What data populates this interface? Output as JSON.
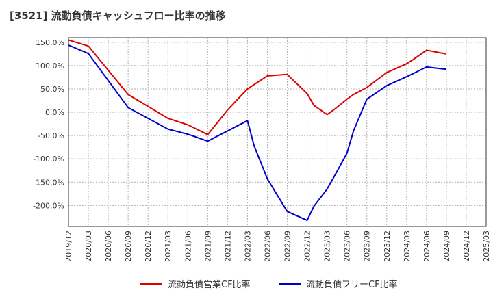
{
  "chart_data": {
    "type": "line",
    "title": "[3521]  流動負債キャッシュフロー比率の推移",
    "x_labels": [
      "2019/12",
      "2020/03",
      "2020/06",
      "2020/09",
      "2020/12",
      "2021/03",
      "2021/06",
      "2021/09",
      "2021/12",
      "2022/03",
      "2022/06",
      "2022/09",
      "2022/12",
      "2023/03",
      "2023/06",
      "2023/09",
      "2023/12",
      "2024/03",
      "2024/06",
      "2024/09",
      "2024/12",
      "2025/03"
    ],
    "y_ticks": [
      150,
      100,
      50,
      0,
      -50,
      -100,
      -150,
      -200
    ],
    "y_tick_labels": [
      "150.0%",
      "100.0%",
      "50.0%",
      "0.0%",
      "-50.0%",
      "-100.0%",
      "-150.0%",
      "-200.0%"
    ],
    "ylim": [
      -245,
      160
    ],
    "grid": true,
    "legend_position": "bottom",
    "series": [
      {
        "name": "流動負債営業CF比率",
        "color": "#dd0000",
        "points": [
          [
            "2019/12",
            155
          ],
          [
            "2020/03",
            142
          ],
          [
            "2020/09",
            38
          ],
          [
            "2021/03",
            -13
          ],
          [
            "2021/06",
            -27
          ],
          [
            "2021/09",
            -48
          ],
          [
            "2021/12",
            5
          ],
          [
            "2022/03",
            50
          ],
          [
            "2022/06",
            78
          ],
          [
            "2022/09",
            81
          ],
          [
            "2022/12",
            40
          ],
          [
            "2023/01",
            15
          ],
          [
            "2023/03",
            -5
          ],
          [
            "2023/04",
            5
          ],
          [
            "2023/06",
            28
          ],
          [
            "2023/07",
            38
          ],
          [
            "2023/09",
            53
          ],
          [
            "2023/12",
            85
          ],
          [
            "2024/03",
            104
          ],
          [
            "2024/04",
            113
          ],
          [
            "2024/06",
            133
          ],
          [
            "2024/09",
            125
          ]
        ]
      },
      {
        "name": "流動負債フリーCF比率",
        "color": "#0000cc",
        "points": [
          [
            "2019/12",
            144
          ],
          [
            "2020/03",
            126
          ],
          [
            "2020/09",
            10
          ],
          [
            "2021/03",
            -36
          ],
          [
            "2021/06",
            -47
          ],
          [
            "2021/09",
            -62
          ],
          [
            "2021/12",
            -40
          ],
          [
            "2022/03",
            -18
          ],
          [
            "2022/04",
            -72
          ],
          [
            "2022/06",
            -143
          ],
          [
            "2022/09",
            -213
          ],
          [
            "2022/12",
            -232
          ],
          [
            "2023/01",
            -202
          ],
          [
            "2023/03",
            -165
          ],
          [
            "2023/04",
            -140
          ],
          [
            "2023/06",
            -88
          ],
          [
            "2023/07",
            -40
          ],
          [
            "2023/09",
            28
          ],
          [
            "2023/12",
            57
          ],
          [
            "2024/03",
            76
          ],
          [
            "2024/04",
            83
          ],
          [
            "2024/06",
            97
          ],
          [
            "2024/09",
            92
          ]
        ]
      }
    ]
  }
}
